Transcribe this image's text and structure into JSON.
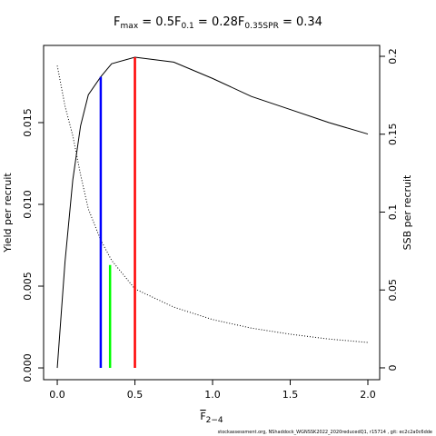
{
  "chart_data": {
    "type": "line",
    "title_parts": [
      {
        "base": "F",
        "sub": "max",
        "rest": " = 0.5"
      },
      {
        "base": "F",
        "sub": "0.1",
        "rest": " = 0.28"
      },
      {
        "base": "F",
        "sub": "0.35SPR",
        "rest": " = 0.34"
      }
    ],
    "xlabel": {
      "base": "F",
      "sub": "2−4"
    },
    "ylabel": "Yield per recruit",
    "y2label": "SSB per recruit",
    "footer": "stockassessment.org, NShaddock_WGNSSK2022_2020reducedQ1, r15714 , git: ec2c2a0c6dde",
    "x": [
      0,
      0.05,
      0.1,
      0.15,
      0.2,
      0.28,
      0.35,
      0.5,
      0.75,
      1,
      1.25,
      1.5,
      1.75,
      2
    ],
    "series": [
      {
        "name": "Yield per recruit",
        "color": "#000000",
        "style": "solid",
        "axis": "y",
        "values": [
          0,
          0.0065,
          0.0115,
          0.0148,
          0.0167,
          0.0178,
          0.0186,
          0.019,
          0.0187,
          0.0177,
          0.0166,
          0.0158,
          0.015,
          0.0143
        ]
      },
      {
        "name": "SSB per recruit",
        "color": "#000000",
        "style": "dotted",
        "axis": "y2",
        "values": [
          0.194,
          0.168,
          0.149,
          0.124,
          0.102,
          0.082,
          0.069,
          0.0507,
          0.039,
          0.031,
          0.0255,
          0.0216,
          0.0185,
          0.0163
        ]
      }
    ],
    "reference_lines": [
      {
        "x": 0.28,
        "top": 0.0178,
        "axis": "y",
        "color": "#0000ff"
      },
      {
        "x": 0.34,
        "top": 0.066,
        "axis": "y2",
        "color": "#00ff00"
      },
      {
        "x": 0.5,
        "top": 0.019,
        "axis": "y",
        "color": "#ff0000"
      }
    ],
    "xlim": [
      -0.088,
      2.076
    ],
    "ylim": [
      -0.00072,
      0.01972
    ],
    "y2lim": [
      -0.0076,
      0.207
    ],
    "xticks": [
      {
        "value": 0,
        "label": "0.0"
      },
      {
        "value": 0.5,
        "label": "0.5"
      },
      {
        "value": 1,
        "label": "1.0"
      },
      {
        "value": 1.5,
        "label": "1.5"
      },
      {
        "value": 2,
        "label": "2.0"
      }
    ],
    "yticks": [
      {
        "value": 0,
        "label": "0.000"
      },
      {
        "value": 0.005,
        "label": "0.005"
      },
      {
        "value": 0.01,
        "label": "0.010"
      },
      {
        "value": 0.015,
        "label": "0.015"
      }
    ],
    "y2ticks": [
      0,
      0.05,
      0.1,
      0.15,
      0.2
    ]
  }
}
